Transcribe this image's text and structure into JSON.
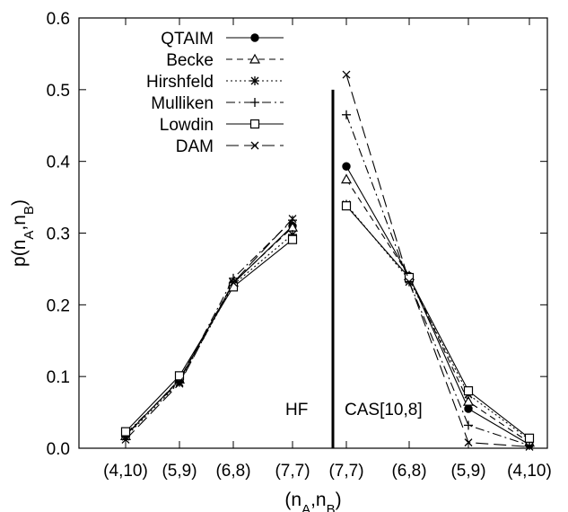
{
  "chart_data": {
    "type": "line",
    "xlabel": "(n_A,n_B)",
    "ylabel": "p(n_A,n_B)",
    "ylim": [
      0,
      0.6
    ],
    "yticks": [
      "0.0",
      "0.1",
      "0.2",
      "0.3",
      "0.4",
      "0.5",
      "0.6"
    ],
    "categories": [
      "(4,10)",
      "(5,9)",
      "(6,8)",
      "(7,7)",
      "(7,7)",
      "(6,8)",
      "(5,9)",
      "(4,10)"
    ],
    "grid": false,
    "legend_position": "top-left",
    "annotations": [
      {
        "text": "HF",
        "panel": "left"
      },
      {
        "text": "CAS[10,8]",
        "panel": "right"
      }
    ],
    "divider_between_categories": [
      3,
      4
    ],
    "groups": [
      {
        "label": "HF",
        "x_indices": [
          0,
          1,
          2,
          3
        ]
      },
      {
        "label": "CAS[10,8]",
        "x_indices": [
          4,
          5,
          6,
          7
        ]
      }
    ],
    "series": [
      {
        "name": "QTAIM",
        "marker": "filled-circle",
        "dash": "solid",
        "hf": [
          0.018,
          0.095,
          0.23,
          0.31
        ],
        "cas": [
          0.393,
          0.24,
          0.055,
          0.005
        ]
      },
      {
        "name": "Becke",
        "marker": "triangle",
        "dash": "dashed",
        "hf": [
          0.017,
          0.096,
          0.231,
          0.308
        ],
        "cas": [
          0.375,
          0.24,
          0.065,
          0.008
        ]
      },
      {
        "name": "Hirshfeld",
        "marker": "asterisk",
        "dash": "dotted",
        "hf": [
          0.016,
          0.092,
          0.228,
          0.298
        ],
        "cas": [
          0.34,
          0.235,
          0.075,
          0.012
        ]
      },
      {
        "name": "Mulliken",
        "marker": "plus",
        "dash": "dashdot",
        "hf": [
          0.02,
          0.093,
          0.237,
          0.318
        ],
        "cas": [
          0.465,
          0.232,
          0.032,
          0.004
        ]
      },
      {
        "name": "Lowdin",
        "marker": "open-square",
        "dash": "solid",
        "hf": [
          0.023,
          0.101,
          0.225,
          0.291
        ],
        "cas": [
          0.338,
          0.238,
          0.08,
          0.014
        ]
      },
      {
        "name": "DAM",
        "marker": "x-cross",
        "dash": "longdash",
        "hf": [
          0.012,
          0.09,
          0.231,
          0.32
        ],
        "cas": [
          0.521,
          0.232,
          0.008,
          0.002
        ]
      }
    ]
  }
}
